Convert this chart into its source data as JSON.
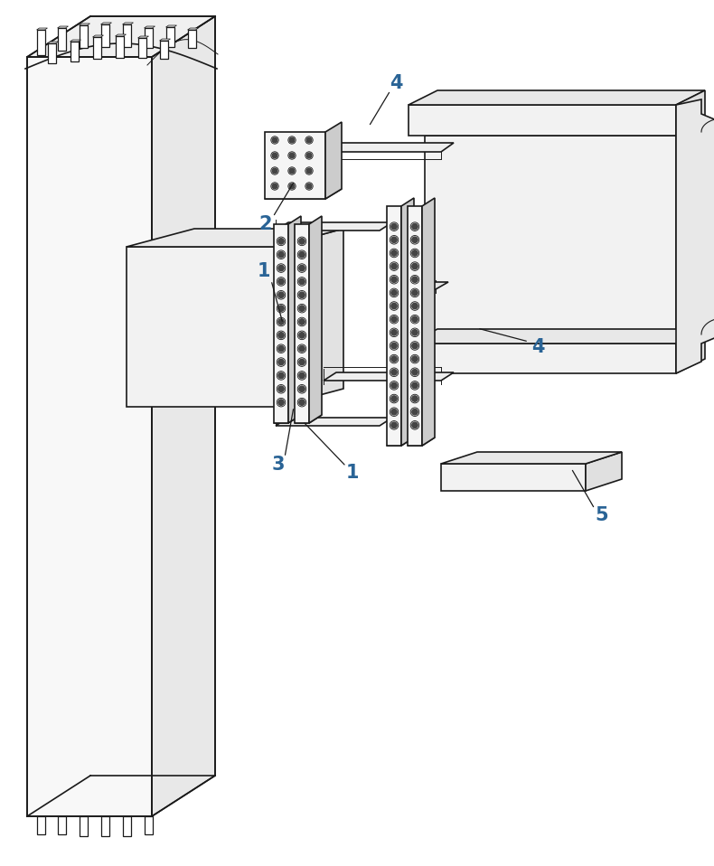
{
  "bg_color": "#ffffff",
  "line_color": "#1a1a1a",
  "line_width": 1.2,
  "thin_line": 0.7,
  "label_color": "#2a6496",
  "fig_width": 7.9,
  "fig_height": 9.58,
  "dpi": 100
}
